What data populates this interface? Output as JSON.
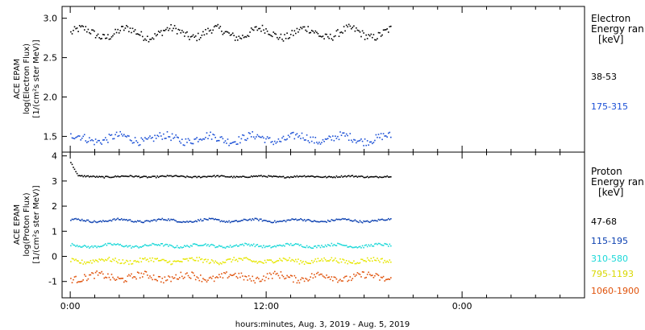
{
  "chart_data": [
    {
      "type": "scatter",
      "panel": "electron",
      "ylabel_lines": [
        "ACE EPAM",
        "log(Electron Flux)",
        "[1/(cm²s ster MeV)]"
      ],
      "ylim": [
        1.3,
        3.15
      ],
      "yticks": [
        1.5,
        2.0,
        2.5,
        3.0
      ],
      "ytick_labels": [
        "1.5",
        "2.0",
        "2.5",
        "3.0"
      ],
      "legend_title_lines": [
        "Electron",
        "Energy ran",
        "[keV]"
      ],
      "series": [
        {
          "name": "38-53",
          "color": "#000000",
          "mean": 2.82,
          "amp": 0.06,
          "noise": 0.05
        },
        {
          "name": "175-315",
          "color": "#1a4fd6",
          "mean": 1.48,
          "amp": 0.04,
          "noise": 0.05
        }
      ]
    },
    {
      "type": "scatter",
      "panel": "proton",
      "ylabel_lines": [
        "ACE EPAM",
        "log(Proton Flux)",
        "[1/(cm²s ster MeV)]"
      ],
      "ylim": [
        -1.65,
        4.15
      ],
      "yticks": [
        -1,
        0,
        1,
        2,
        3,
        4
      ],
      "ytick_labels": [
        "-1",
        "0",
        "1",
        "2",
        "3",
        "4"
      ],
      "legend_title_lines": [
        "Proton",
        "Energy ran",
        "[keV]"
      ],
      "series": [
        {
          "name": "47-68",
          "color": "#000000",
          "mean": 3.2,
          "amp": 0.02,
          "noise": 0.03
        },
        {
          "name": "115-195",
          "color": "#0a3fb0",
          "mean": 1.45,
          "amp": 0.05,
          "noise": 0.04
        },
        {
          "name": "310-580",
          "color": "#1ad8d8",
          "mean": 0.45,
          "amp": 0.05,
          "noise": 0.05
        },
        {
          "name": "795-1193",
          "color": "#e6e600",
          "mean": -0.15,
          "amp": 0.06,
          "noise": 0.09
        },
        {
          "name": "1060-1900",
          "color": "#e0520a",
          "mean": -0.8,
          "amp": 0.1,
          "noise": 0.14
        }
      ]
    }
  ],
  "x_axis": {
    "title": "hours:minutes, Aug.  3, 2019 - Aug.  5, 2019",
    "range_hours": [
      -0.5,
      31.5
    ],
    "data_end_hours": 19.6,
    "major_ticks_hours": [
      0,
      12,
      24
    ],
    "major_tick_labels": [
      "0:00",
      "12:00",
      "0:00"
    ],
    "minor_step_hours": 1.5
  }
}
